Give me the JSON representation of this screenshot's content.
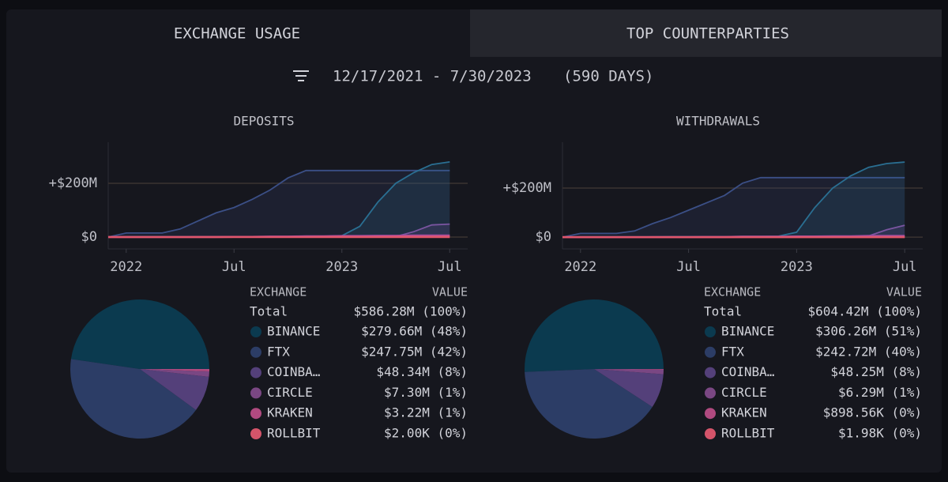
{
  "tabs": [
    "EXCHANGE USAGE",
    "TOP COUNTERPARTIES"
  ],
  "date_range": "12/17/2021 - 7/30/2023",
  "duration": "(590 DAYS)",
  "chart_data": [
    {
      "type": "area",
      "title": "DEPOSITS",
      "x": [
        "2021-12",
        "2022-01",
        "2022-02",
        "2022-03",
        "2022-04",
        "2022-05",
        "2022-06",
        "2022-07",
        "2022-08",
        "2022-09",
        "2022-10",
        "2022-11",
        "2022-12",
        "2023-01",
        "2023-02",
        "2023-03",
        "2023-04",
        "2023-05",
        "2023-06",
        "2023-07"
      ],
      "xlim": [
        "2021-12",
        "2023-08"
      ],
      "xticks": [
        {
          "value": "2022-01",
          "label": "2022"
        },
        {
          "value": "2022-07",
          "label": "Jul"
        },
        {
          "value": "2023-01",
          "label": "2023"
        },
        {
          "value": "2023-07",
          "label": "Jul"
        }
      ],
      "ylim": [
        -44000000,
        353000000
      ],
      "yticks": [
        {
          "value": 0,
          "label": "$0"
        },
        {
          "value": 200000000,
          "label": "+$200M"
        }
      ],
      "grid": true,
      "series": [
        {
          "color": "#3b4f86",
          "values": [
            0,
            15000000,
            15000000,
            15000000,
            30000000,
            60000000,
            90000000,
            110000000,
            140000000,
            175000000,
            220000000,
            247750000,
            247750000,
            247750000,
            247750000,
            247750000,
            247750000,
            247750000,
            247750000,
            247750000
          ]
        },
        {
          "color": "#2a6f92",
          "values": [
            0,
            1000000,
            1000000,
            1000000,
            1000000,
            1000000,
            1000000,
            2000000,
            2000000,
            2000000,
            2000000,
            3000000,
            3000000,
            5000000,
            40000000,
            130000000,
            200000000,
            240000000,
            270000000,
            279660000
          ]
        },
        {
          "color": "#7a55a0",
          "values": [
            0,
            0,
            0,
            0,
            0,
            0,
            0,
            0,
            0,
            0,
            0,
            0,
            0,
            0,
            0,
            0,
            2000000,
            20000000,
            45000000,
            48340000
          ]
        },
        {
          "color": "#9a4fa0",
          "values": [
            0,
            0,
            0,
            0,
            0,
            1000000,
            1000000,
            2000000,
            2000000,
            3000000,
            3000000,
            4000000,
            4000000,
            5000000,
            5000000,
            6000000,
            6000000,
            7000000,
            7000000,
            7300000
          ]
        },
        {
          "color": "#c84e8a",
          "values": [
            0,
            0,
            0,
            0,
            0,
            0,
            0,
            1000000,
            1000000,
            1000000,
            1000000,
            1000000,
            2000000,
            2000000,
            2000000,
            2000000,
            3000000,
            3000000,
            3000000,
            3220000
          ]
        },
        {
          "color": "#e0566c",
          "values": [
            0,
            0,
            0,
            0,
            0,
            0,
            0,
            0,
            0,
            0,
            0,
            0,
            0,
            0,
            0,
            0,
            0,
            0,
            0,
            2000
          ]
        }
      ]
    },
    {
      "type": "pie",
      "columns": [
        "EXCHANGE",
        "VALUE"
      ],
      "total_name": "Total",
      "total": 586280000,
      "total_label": "$586.28M (100%)",
      "categories": [
        "BINANCE",
        "FTX",
        "COINBA…",
        "CIRCLE",
        "KRAKEN",
        "ROLLBIT"
      ],
      "colors": [
        "#0b3a4f",
        "#2c3d66",
        "#54407a",
        "#7a4783",
        "#b04a80",
        "#d4546a"
      ],
      "values": [
        279660000,
        247750000,
        48340000,
        7300000,
        3220000,
        2000
      ],
      "value_labels": [
        "$279.66M (48%)",
        "$247.75M (42%)",
        "$48.34M (8%)",
        "$7.30M (1%)",
        "$3.22M (1%)",
        "$2.00K (0%)"
      ]
    },
    {
      "type": "area",
      "title": "WITHDRAWALS",
      "x": [
        "2021-12",
        "2022-01",
        "2022-02",
        "2022-03",
        "2022-04",
        "2022-05",
        "2022-06",
        "2022-07",
        "2022-08",
        "2022-09",
        "2022-10",
        "2022-11",
        "2022-12",
        "2023-01",
        "2023-02",
        "2023-03",
        "2023-04",
        "2023-05",
        "2023-06",
        "2023-07"
      ],
      "xlim": [
        "2021-12",
        "2023-08"
      ],
      "xticks": [
        {
          "value": "2022-01",
          "label": "2022"
        },
        {
          "value": "2022-07",
          "label": "Jul"
        },
        {
          "value": "2023-01",
          "label": "2023"
        },
        {
          "value": "2023-07",
          "label": "Jul"
        }
      ],
      "ylim": [
        -48000000,
        387000000
      ],
      "yticks": [
        {
          "value": 0,
          "label": "$0"
        },
        {
          "value": 200000000,
          "label": "+$200M"
        }
      ],
      "grid": true,
      "series": [
        {
          "color": "#3b4f86",
          "values": [
            0,
            15000000,
            15000000,
            15000000,
            25000000,
            55000000,
            80000000,
            110000000,
            140000000,
            170000000,
            220000000,
            242720000,
            242720000,
            242720000,
            242720000,
            242720000,
            242720000,
            242720000,
            242720000,
            242720000
          ]
        },
        {
          "color": "#2a6f92",
          "values": [
            0,
            1000000,
            1000000,
            1000000,
            1000000,
            1000000,
            2000000,
            2000000,
            2000000,
            2000000,
            3000000,
            3000000,
            4000000,
            20000000,
            120000000,
            200000000,
            250000000,
            285000000,
            300000000,
            306260000
          ]
        },
        {
          "color": "#7a55a0",
          "values": [
            0,
            0,
            0,
            0,
            0,
            0,
            0,
            0,
            0,
            0,
            0,
            0,
            0,
            0,
            0,
            0,
            0,
            5000000,
            30000000,
            48250000
          ]
        },
        {
          "color": "#9a4fa0",
          "values": [
            0,
            0,
            0,
            0,
            0,
            1000000,
            1000000,
            1000000,
            2000000,
            2000000,
            3000000,
            3000000,
            3000000,
            4000000,
            4000000,
            5000000,
            5000000,
            6000000,
            6000000,
            6290000
          ]
        },
        {
          "color": "#c84e8a",
          "values": [
            0,
            0,
            0,
            0,
            0,
            0,
            0,
            0,
            0,
            0,
            500000,
            500000,
            500000,
            600000,
            600000,
            700000,
            800000,
            800000,
            850000,
            898560
          ]
        },
        {
          "color": "#e0566c",
          "values": [
            0,
            0,
            0,
            0,
            0,
            0,
            0,
            0,
            0,
            0,
            0,
            0,
            0,
            0,
            0,
            0,
            0,
            0,
            0,
            1980
          ]
        }
      ]
    },
    {
      "type": "pie",
      "columns": [
        "EXCHANGE",
        "VALUE"
      ],
      "total_name": "Total",
      "total": 604420000,
      "total_label": "$604.42M (100%)",
      "categories": [
        "BINANCE",
        "FTX",
        "COINBA…",
        "CIRCLE",
        "KRAKEN",
        "ROLLBIT"
      ],
      "colors": [
        "#0b3a4f",
        "#2c3d66",
        "#54407a",
        "#7a4783",
        "#b04a80",
        "#d4546a"
      ],
      "values": [
        306260000,
        242720000,
        48250000,
        6290000,
        898560,
        1980
      ],
      "value_labels": [
        "$306.26M (51%)",
        "$242.72M (40%)",
        "$48.25M (8%)",
        "$6.29M (1%)",
        "$898.56K (0%)",
        "$1.98K (0%)"
      ]
    }
  ]
}
